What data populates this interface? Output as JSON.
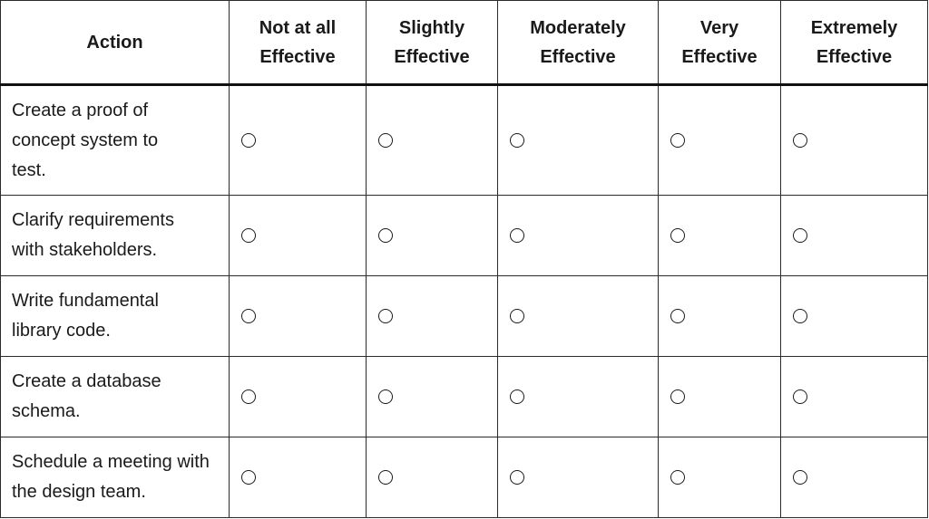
{
  "columns": [
    "Action",
    "Not at all\nEffective",
    "Slightly\nEffective",
    "Moderately\nEffective",
    "Very\nEffective",
    "Extremely\nEffective"
  ],
  "rows": [
    {
      "action": "Create a proof of concept system to test.",
      "selected": null
    },
    {
      "action": "Clarify requirements with stakeholders.",
      "selected": null
    },
    {
      "action": "Write fundamental library code.",
      "selected": null
    },
    {
      "action": "Create a database schema.",
      "selected": null
    },
    {
      "action": "Schedule a meeting with the design team.",
      "selected": null
    }
  ]
}
